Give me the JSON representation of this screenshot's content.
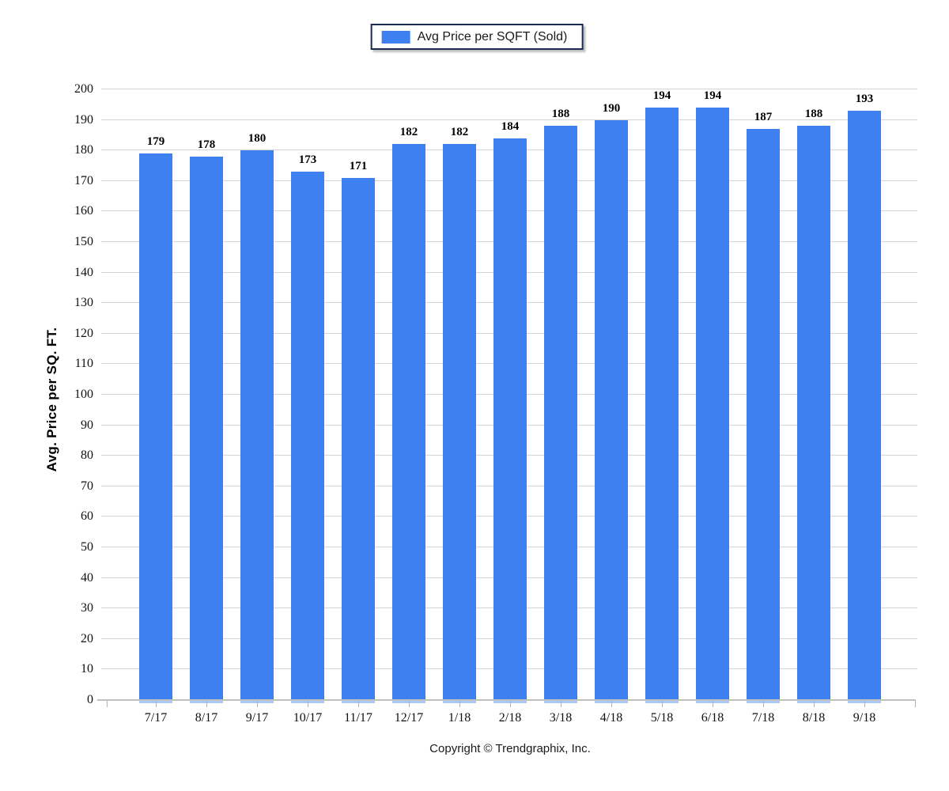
{
  "legend": {
    "label": "Avg Price per SQFT (Sold)"
  },
  "y_axis_title": "Avg. Price per SQ. FT.",
  "footer": {
    "copyright": "Copyright © Trendgraphix, Inc."
  },
  "colors": {
    "bar": "#3f80f0",
    "bar_glow": "#a9c8f3",
    "gridline": "#d4d4d4",
    "axis_line": "#c0c0c0",
    "tick": "#b4b4b4",
    "legend_border": "#1b2a4e"
  },
  "chart_data": {
    "type": "bar",
    "title": "",
    "categories": [
      "7/17",
      "8/17",
      "9/17",
      "10/17",
      "11/17",
      "12/17",
      "1/18",
      "2/18",
      "3/18",
      "4/18",
      "5/18",
      "6/18",
      "7/18",
      "8/18",
      "9/18"
    ],
    "series": [
      {
        "name": "Avg Price per SQFT (Sold)",
        "values": [
          179,
          178,
          180,
          173,
          171,
          182,
          182,
          184,
          188,
          190,
          194,
          194,
          187,
          188,
          193
        ]
      }
    ],
    "xlabel": "",
    "ylabel": "Avg. Price per SQ. FT.",
    "ylim": [
      0,
      200
    ],
    "ytick_step": 10,
    "grid": true,
    "value_labels": true,
    "legend_position": "top-center"
  }
}
